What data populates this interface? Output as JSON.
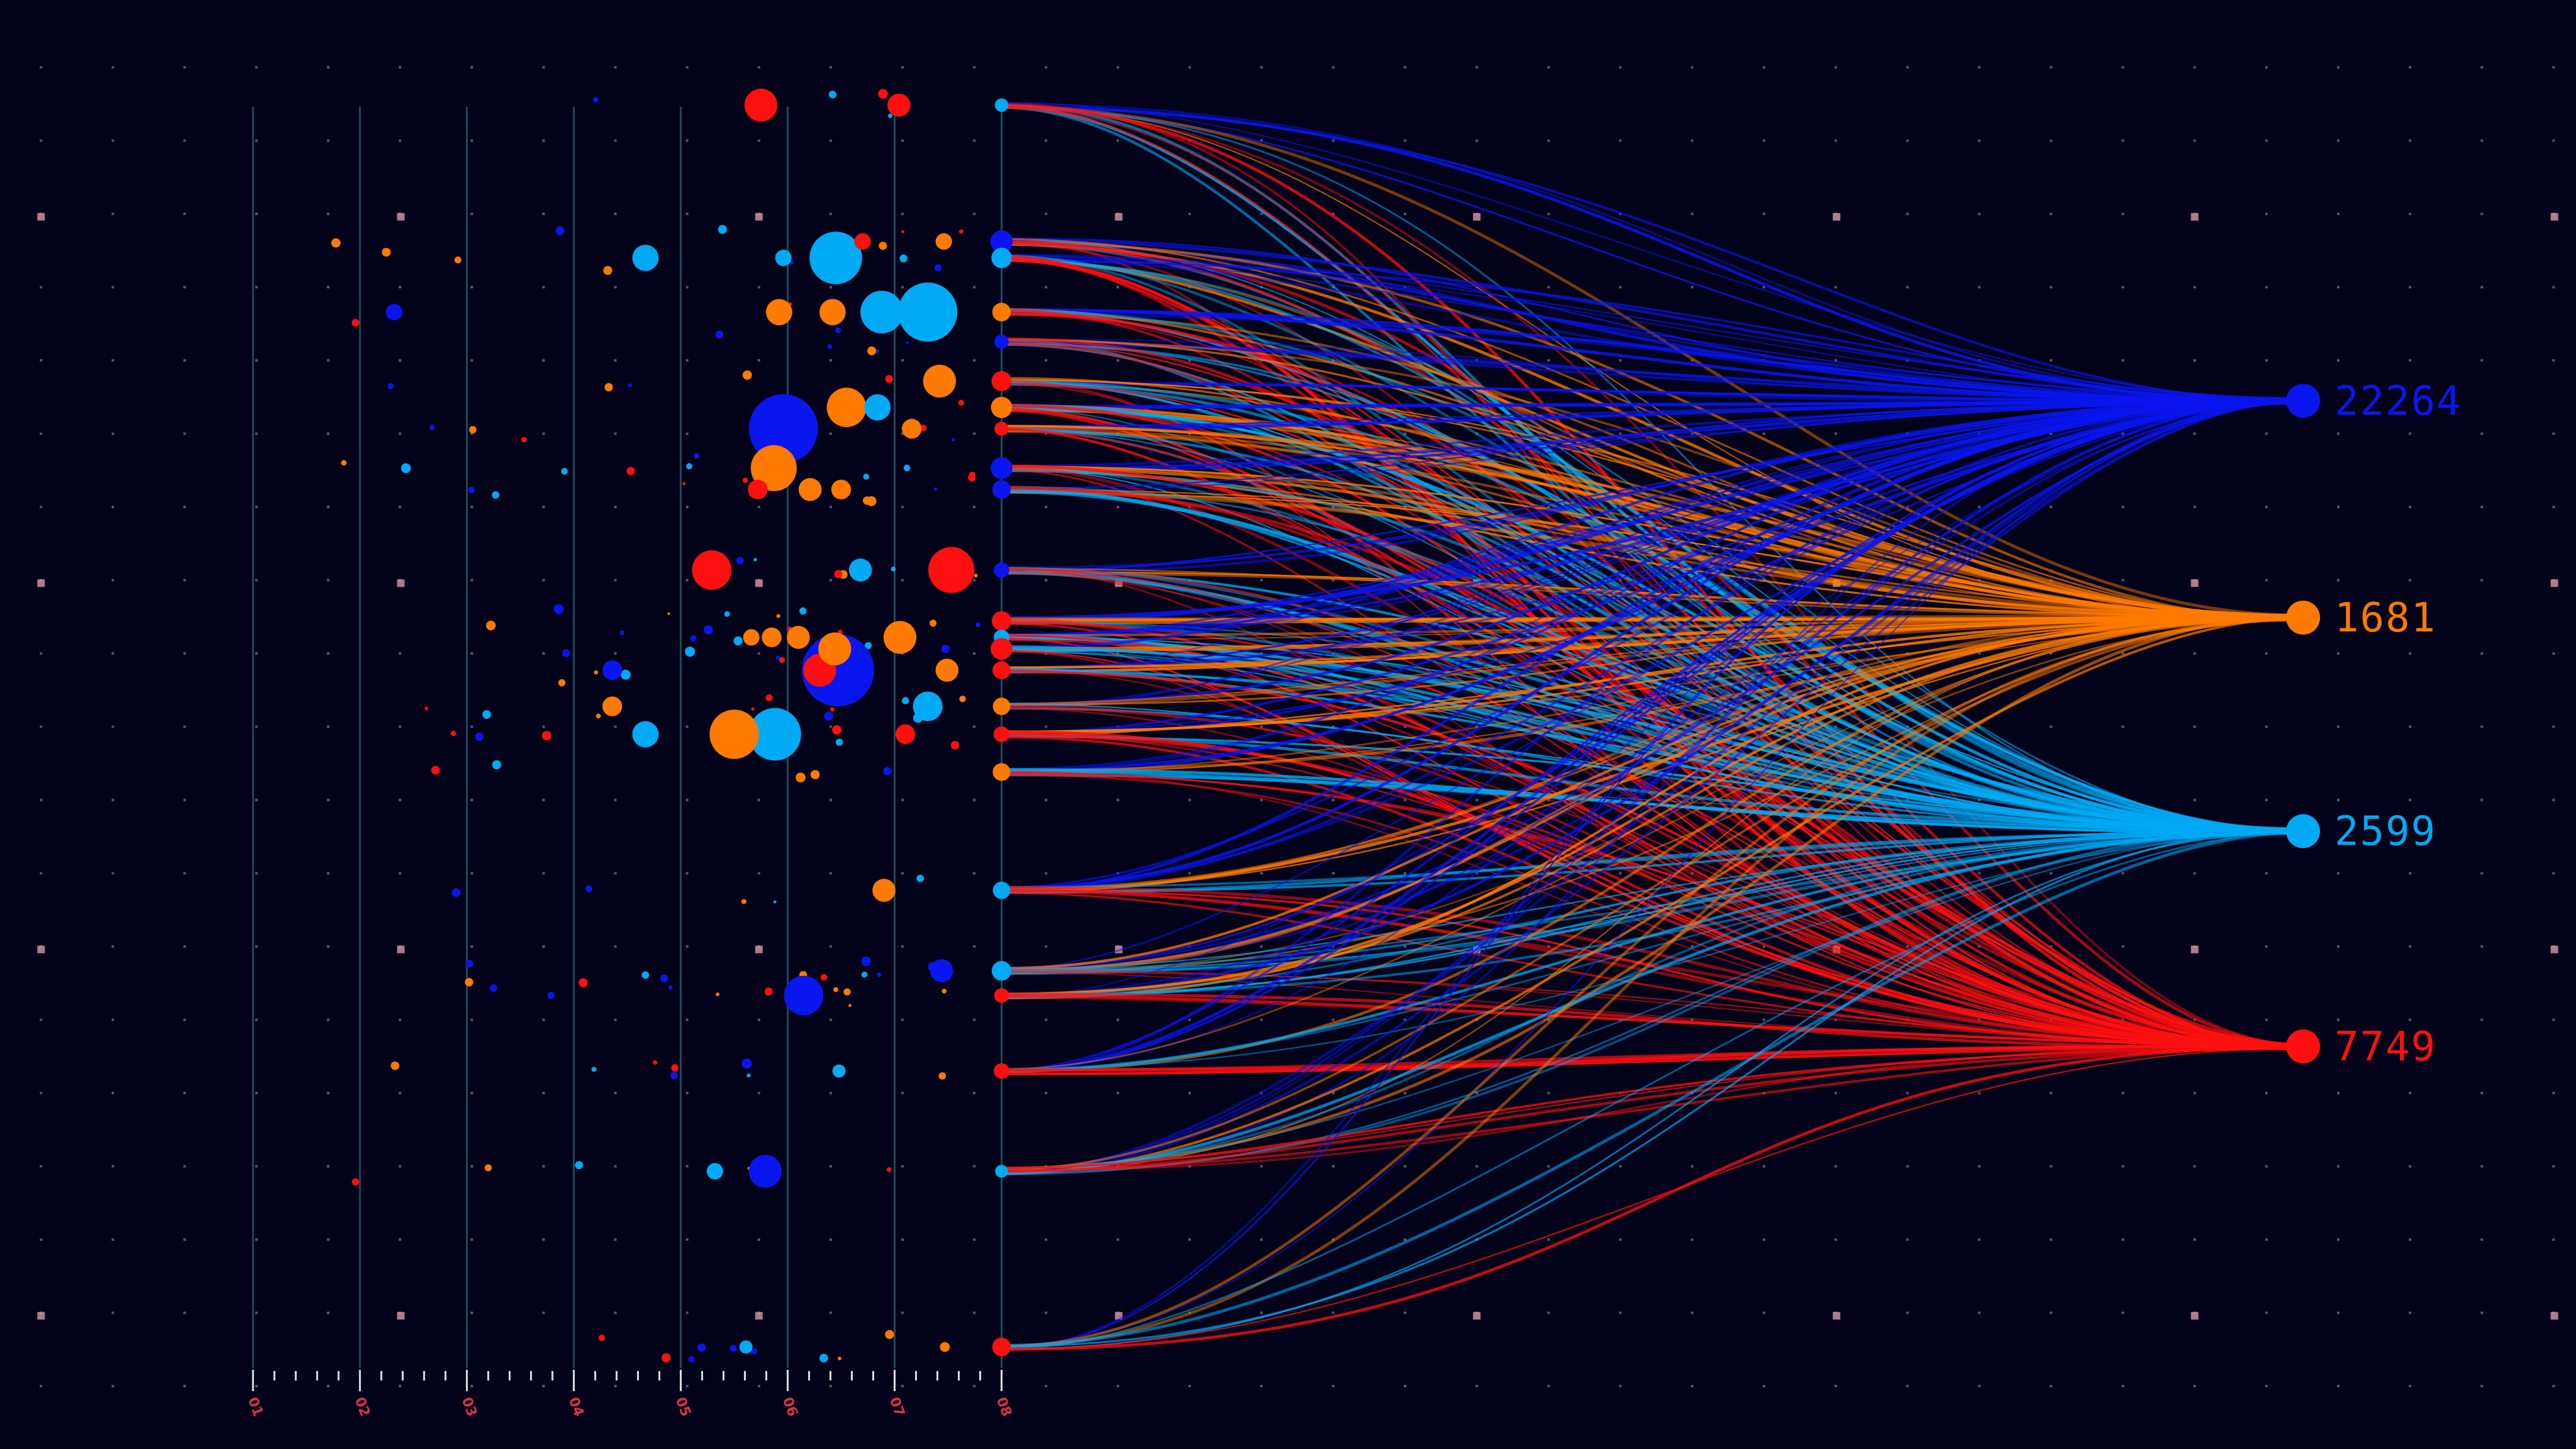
{
  "chart_data": {
    "type": "flow-bubble",
    "title": "",
    "xlabel": "",
    "ylabel": "",
    "grid": true,
    "x_axis": {
      "ticks": [
        "01",
        "02",
        "03",
        "04",
        "05",
        "06",
        "07",
        "08"
      ],
      "range": [
        1,
        8
      ]
    },
    "targets": [
      {
        "value": "22264",
        "color": "#0a16f0"
      },
      {
        "value": "1681",
        "color": "#ff7a00"
      },
      {
        "value": "2599",
        "color": "#00aaf5"
      },
      {
        "value": "7749",
        "color": "#ff1010"
      }
    ],
    "bubbles": [
      {
        "x": 5.75,
        "row": 0,
        "size": 10,
        "color": "#ff1010"
      },
      {
        "x": 7.04,
        "row": 0,
        "size": 7,
        "color": "#ff1010"
      },
      {
        "x": 6.45,
        "row": 2,
        "size": 16,
        "color": "#00aaf5"
      },
      {
        "x": 7.31,
        "row": 3,
        "size": 18,
        "color": "#00aaf5"
      },
      {
        "x": 6.88,
        "row": 3,
        "size": 13,
        "color": "#00aaf5"
      },
      {
        "x": 5.96,
        "row": 7,
        "size": 21,
        "color": "#0a16f0"
      },
      {
        "x": 5.87,
        "row": 8,
        "size": 14,
        "color": "#ff7a00"
      },
      {
        "x": 6.55,
        "row": 6,
        "size": 12,
        "color": "#ff7a00"
      },
      {
        "x": 7.42,
        "row": 5,
        "size": 10,
        "color": "#ff7a00"
      },
      {
        "x": 6.84,
        "row": 6,
        "size": 8,
        "color": "#00aaf5"
      },
      {
        "x": 5.29,
        "row": 10,
        "size": 12,
        "color": "#ff1010"
      },
      {
        "x": 7.53,
        "row": 10,
        "size": 14,
        "color": "#ff1010"
      },
      {
        "x": 6.47,
        "row": 14,
        "size": 22,
        "color": "#0a16f0"
      },
      {
        "x": 6.3,
        "row": 14,
        "size": 10,
        "color": "#ff1010"
      },
      {
        "x": 6.44,
        "row": 13,
        "size": 10,
        "color": "#ff7a00"
      },
      {
        "x": 7.05,
        "row": 12,
        "size": 10,
        "color": "#ff7a00"
      },
      {
        "x": 5.88,
        "row": 16,
        "size": 16,
        "color": "#00aaf5"
      },
      {
        "x": 5.5,
        "row": 16,
        "size": 15,
        "color": "#ff7a00"
      },
      {
        "x": 7.31,
        "row": 15,
        "size": 9,
        "color": "#00aaf5"
      },
      {
        "x": 4.67,
        "row": 16,
        "size": 8,
        "color": "#00aaf5"
      },
      {
        "x": 4.67,
        "row": 2,
        "size": 8,
        "color": "#00aaf5"
      },
      {
        "x": 5.92,
        "row": 3,
        "size": 8,
        "color": "#ff7a00"
      },
      {
        "x": 6.42,
        "row": 3,
        "size": 8,
        "color": "#ff7a00"
      },
      {
        "x": 6.68,
        "row": 10,
        "size": 7,
        "color": "#00aaf5"
      },
      {
        "x": 6.15,
        "row": 20,
        "size": 12,
        "color": "#0a16f0"
      },
      {
        "x": 7.44,
        "row": 19,
        "size": 7,
        "color": "#0a16f0"
      },
      {
        "x": 6.9,
        "row": 18,
        "size": 7,
        "color": "#ff7a00"
      },
      {
        "x": 5.79,
        "row": 22,
        "size": 10,
        "color": "#0a16f0"
      },
      {
        "x": 5.32,
        "row": 22,
        "size": 5,
        "color": "#00aaf5"
      },
      {
        "x": 6.21,
        "row": 9,
        "size": 7,
        "color": "#ff7a00"
      },
      {
        "x": 6.5,
        "row": 9,
        "size": 6,
        "color": "#ff7a00"
      },
      {
        "x": 5.72,
        "row": 9,
        "size": 6,
        "color": "#ff1010"
      },
      {
        "x": 7.49,
        "row": 14,
        "size": 7,
        "color": "#ff7a00"
      },
      {
        "x": 7.1,
        "row": 16,
        "size": 6,
        "color": "#ff1010"
      },
      {
        "x": 4.36,
        "row": 15,
        "size": 6,
        "color": "#ff7a00"
      },
      {
        "x": 4.36,
        "row": 14,
        "size": 6,
        "color": "#0a16f0"
      },
      {
        "x": 7.16,
        "row": 7,
        "size": 6,
        "color": "#ff7a00"
      },
      {
        "x": 7.46,
        "row": 1,
        "size": 5,
        "color": "#ff7a00"
      },
      {
        "x": 6.7,
        "row": 1,
        "size": 5,
        "color": "#ff1010"
      },
      {
        "x": 5.96,
        "row": 2,
        "size": 5,
        "color": "#00aaf5"
      },
      {
        "x": 6.1,
        "row": 12,
        "size": 7,
        "color": "#ff7a00"
      },
      {
        "x": 5.85,
        "row": 12,
        "size": 6,
        "color": "#ff7a00"
      },
      {
        "x": 5.66,
        "row": 12,
        "size": 5,
        "color": "#ff7a00"
      },
      {
        "x": 6.48,
        "row": 21,
        "size": 4,
        "color": "#00aaf5"
      },
      {
        "x": 5.61,
        "row": 23,
        "size": 4,
        "color": "#00aaf5"
      },
      {
        "x": 7.47,
        "row": 23,
        "size": 3,
        "color": "#ff7a00"
      },
      {
        "x": 2.32,
        "row": 3,
        "size": 5,
        "color": "#0a16f0"
      },
      {
        "x": 2.43,
        "row": 8,
        "size": 3,
        "color": "#00aaf5"
      }
    ]
  }
}
